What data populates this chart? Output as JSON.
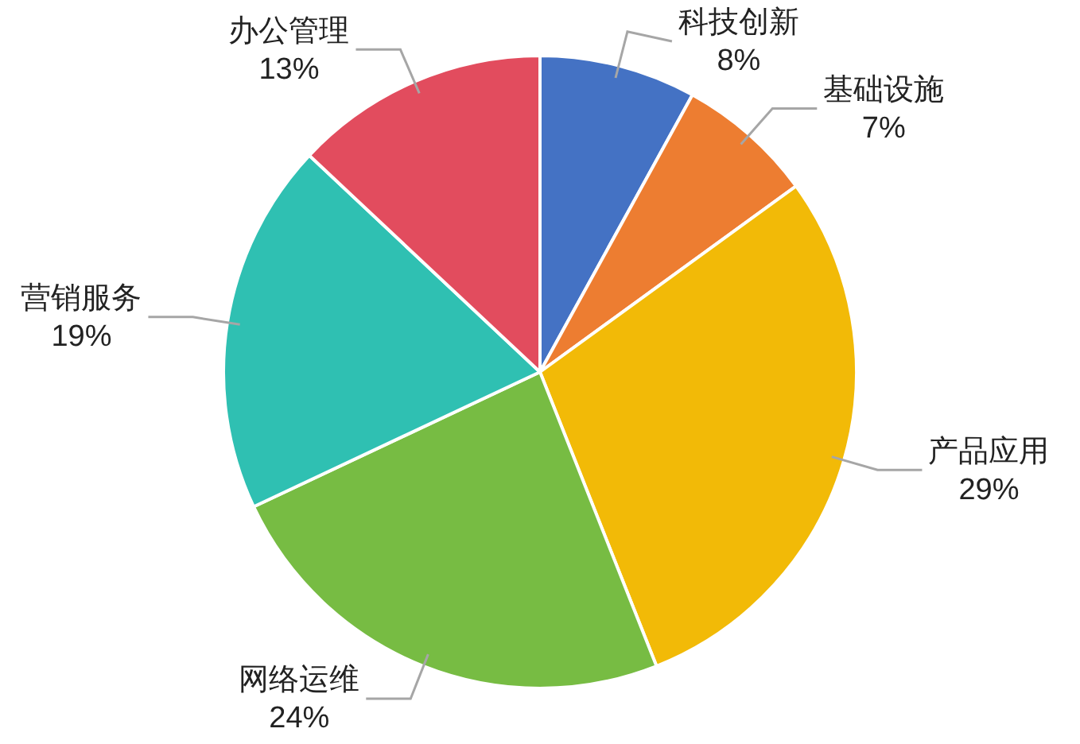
{
  "chart_data": {
    "type": "pie",
    "categories": [
      "科技创新",
      "基础设施",
      "产品应用",
      "网络运维",
      "营销服务",
      "办公管理"
    ],
    "values": [
      8,
      7,
      29,
      24,
      19,
      13
    ],
    "value_labels": [
      "8%",
      "7%",
      "29%",
      "24%",
      "19%",
      "13%"
    ],
    "colors": [
      "#4472c4",
      "#ed7d31",
      "#f2ba07",
      "#77bc43",
      "#2fc0b2",
      "#e24c5e"
    ],
    "legend": false
  }
}
